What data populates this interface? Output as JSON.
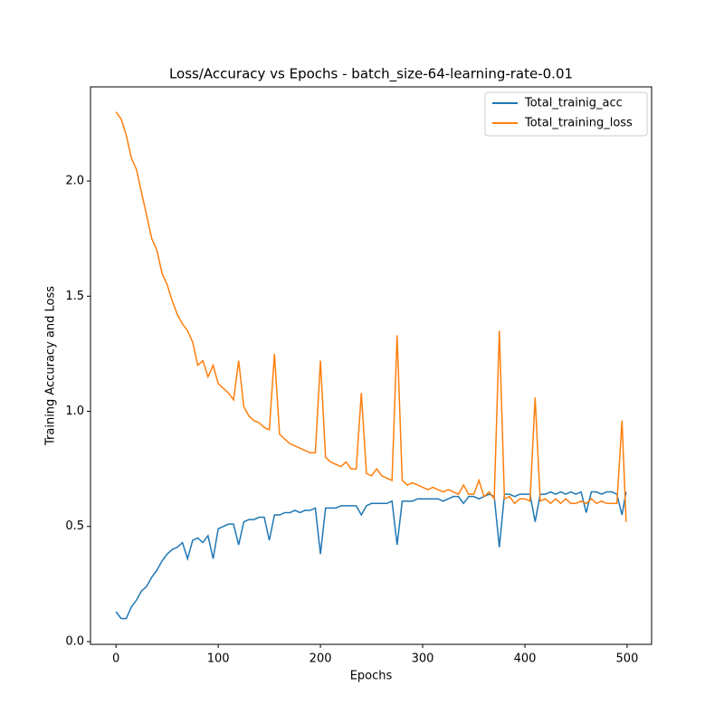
{
  "chart_data": {
    "type": "line",
    "title": "Loss/Accuracy vs Epochs - batch_size-64-learning-rate-0.01",
    "x_label": "Epochs",
    "y_label": "Training Accuracy and Loss",
    "x": [
      0,
      5,
      10,
      15,
      20,
      25,
      30,
      35,
      40,
      45,
      50,
      55,
      60,
      65,
      70,
      75,
      80,
      85,
      90,
      95,
      100,
      105,
      110,
      115,
      120,
      125,
      130,
      135,
      140,
      145,
      150,
      155,
      160,
      165,
      170,
      175,
      180,
      185,
      190,
      195,
      200,
      205,
      210,
      215,
      220,
      225,
      230,
      235,
      240,
      245,
      250,
      255,
      260,
      265,
      270,
      275,
      280,
      285,
      290,
      295,
      300,
      305,
      310,
      315,
      320,
      325,
      330,
      335,
      340,
      345,
      350,
      355,
      360,
      365,
      370,
      375,
      380,
      385,
      390,
      395,
      400,
      405,
      410,
      415,
      420,
      425,
      430,
      435,
      440,
      445,
      450,
      455,
      460,
      465,
      470,
      475,
      480,
      485,
      490,
      495,
      499
    ],
    "series": [
      {
        "name": "Total_trainig_acc",
        "color": "#1f77b4",
        "values": [
          0.13,
          0.1,
          0.1,
          0.15,
          0.18,
          0.22,
          0.24,
          0.28,
          0.31,
          0.35,
          0.38,
          0.4,
          0.41,
          0.43,
          0.36,
          0.44,
          0.45,
          0.43,
          0.46,
          0.36,
          0.49,
          0.5,
          0.51,
          0.51,
          0.42,
          0.52,
          0.53,
          0.53,
          0.54,
          0.54,
          0.44,
          0.55,
          0.55,
          0.56,
          0.56,
          0.57,
          0.56,
          0.57,
          0.57,
          0.58,
          0.38,
          0.58,
          0.58,
          0.58,
          0.59,
          0.59,
          0.59,
          0.59,
          0.55,
          0.59,
          0.6,
          0.6,
          0.6,
          0.6,
          0.61,
          0.42,
          0.61,
          0.61,
          0.61,
          0.62,
          0.62,
          0.62,
          0.62,
          0.62,
          0.61,
          0.62,
          0.63,
          0.63,
          0.6,
          0.63,
          0.63,
          0.62,
          0.63,
          0.64,
          0.63,
          0.41,
          0.64,
          0.64,
          0.63,
          0.64,
          0.64,
          0.64,
          0.52,
          0.64,
          0.64,
          0.65,
          0.64,
          0.65,
          0.64,
          0.65,
          0.64,
          0.65,
          0.56,
          0.65,
          0.65,
          0.64,
          0.65,
          0.65,
          0.64,
          0.55,
          0.65
        ]
      },
      {
        "name": "Total_training_loss",
        "color": "#ff7f0e",
        "values": [
          2.3,
          2.27,
          2.2,
          2.1,
          2.05,
          1.95,
          1.85,
          1.75,
          1.7,
          1.6,
          1.55,
          1.48,
          1.42,
          1.38,
          1.35,
          1.3,
          1.2,
          1.22,
          1.15,
          1.2,
          1.12,
          1.1,
          1.08,
          1.05,
          1.22,
          1.02,
          0.98,
          0.96,
          0.95,
          0.93,
          0.92,
          1.25,
          0.9,
          0.88,
          0.86,
          0.85,
          0.84,
          0.83,
          0.82,
          0.82,
          1.22,
          0.8,
          0.78,
          0.77,
          0.76,
          0.78,
          0.75,
          0.75,
          1.08,
          0.73,
          0.72,
          0.75,
          0.72,
          0.71,
          0.7,
          1.33,
          0.7,
          0.68,
          0.69,
          0.68,
          0.67,
          0.66,
          0.67,
          0.66,
          0.65,
          0.66,
          0.65,
          0.64,
          0.68,
          0.64,
          0.64,
          0.7,
          0.63,
          0.65,
          0.62,
          1.35,
          0.62,
          0.63,
          0.6,
          0.62,
          0.62,
          0.61,
          1.06,
          0.61,
          0.62,
          0.6,
          0.62,
          0.6,
          0.62,
          0.6,
          0.6,
          0.61,
          0.6,
          0.62,
          0.6,
          0.61,
          0.6,
          0.6,
          0.6,
          0.96,
          0.52
        ]
      }
    ],
    "xlim": [
      -24.95,
      523.95
    ],
    "ylim": [
      -0.012,
      2.409
    ],
    "xticks": [
      0,
      100,
      200,
      300,
      400,
      500
    ],
    "yticks": [
      {
        "value": 0,
        "label": "0.0"
      },
      0.5,
      {
        "value": 1,
        "label": "1.0"
      },
      1.5,
      {
        "value": 2,
        "label": "2.0"
      }
    ],
    "legend": "upper right"
  }
}
